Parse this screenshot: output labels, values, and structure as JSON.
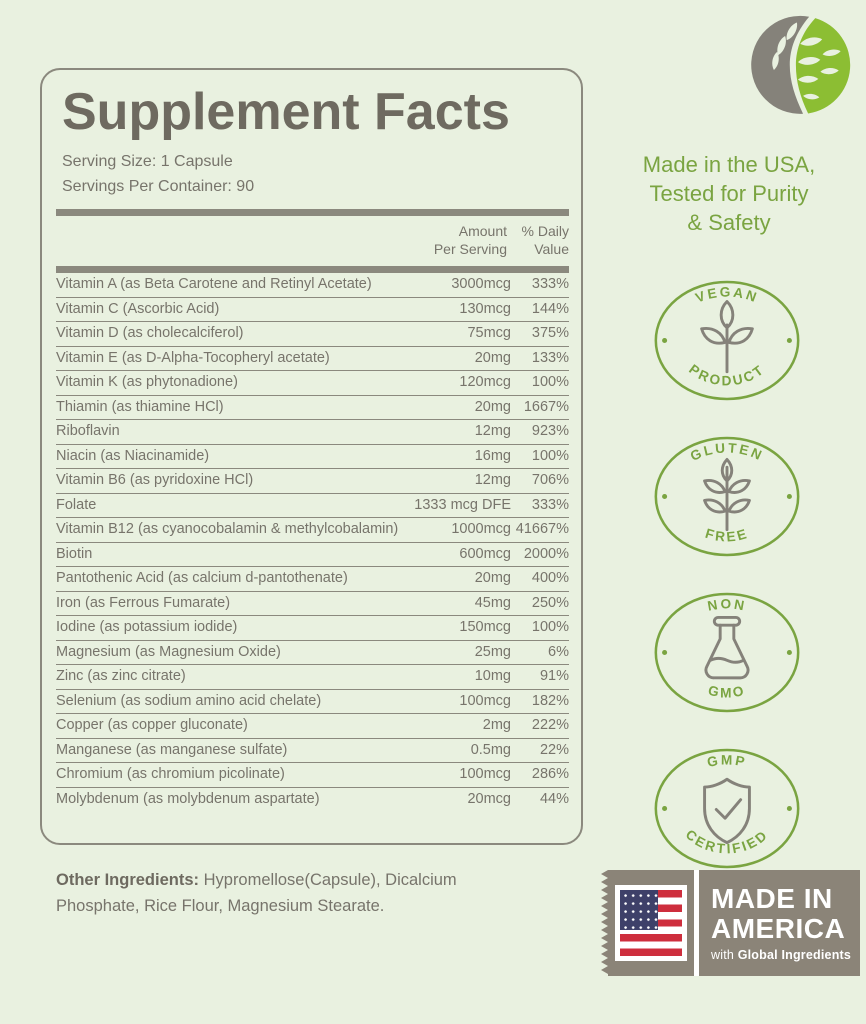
{
  "colors": {
    "bg": "#e9f1e0",
    "line": "#8b897e",
    "ink": "#6e6a60",
    "ink2": "#77746b",
    "green": "#7aa441",
    "icon": "#85827a",
    "stamp": "#8b8478",
    "flag_red": "#ce2e3d",
    "flag_navy": "#3e4069",
    "logo_green": "#8cbe33",
    "white": "#ffffff"
  },
  "panel": {
    "title": "Supplement Facts",
    "serving_size": "Serving Size: 1 Capsule",
    "servings_per_container": "Servings Per Container: 90",
    "columns": {
      "amount": "Amount\nPer Serving",
      "daily_value": "% Daily\nValue"
    },
    "rows": [
      {
        "name": "Vitamin A (as Beta Carotene and Retinyl Acetate)",
        "amount": "3000mcg",
        "dv": "333%"
      },
      {
        "name": "Vitamin C (Ascorbic Acid)",
        "amount": "130mcg",
        "dv": "144%"
      },
      {
        "name": "Vitamin D (as cholecalciferol)",
        "amount": "75mcg",
        "dv": "375%"
      },
      {
        "name": "Vitamin E (as D-Alpha-Tocopheryl acetate)",
        "amount": "20mg",
        "dv": "133%"
      },
      {
        "name": "Vitamin K (as phytonadione)",
        "amount": "120mcg",
        "dv": "100%"
      },
      {
        "name": "Thiamin (as thiamine HCl)",
        "amount": "20mg",
        "dv": "1667%"
      },
      {
        "name": "Riboflavin",
        "amount": "12mg",
        "dv": "923%"
      },
      {
        "name": "Niacin (as Niacinamide)",
        "amount": "16mg",
        "dv": "100%"
      },
      {
        "name": "Vitamin B6 (as pyridoxine HCl)",
        "amount": "12mg",
        "dv": "706%"
      },
      {
        "name": "Folate",
        "amount": "1333 mcg DFE",
        "dv": "333%"
      },
      {
        "name": "Vitamin B12 (as cyanocobalamin & methylcobalamin)",
        "amount": "1000mcg",
        "dv": "41667%"
      },
      {
        "name": "Biotin",
        "amount": "600mcg",
        "dv": "2000%"
      },
      {
        "name": "Pantothenic Acid (as calcium d-pantothenate)",
        "amount": "20mg",
        "dv": "400%"
      },
      {
        "name": "Iron (as Ferrous Fumarate)",
        "amount": "45mg",
        "dv": "250%"
      },
      {
        "name": "Iodine (as potassium iodide)",
        "amount": "150mcg",
        "dv": "100%"
      },
      {
        "name": "Magnesium (as Magnesium Oxide)",
        "amount": "25mg",
        "dv": "6%"
      },
      {
        "name": "Zinc (as zinc citrate)",
        "amount": "10mg",
        "dv": "91%"
      },
      {
        "name": "Selenium (as sodium amino acid chelate)",
        "amount": "100mcg",
        "dv": "182%"
      },
      {
        "name": "Copper (as copper gluconate)",
        "amount": "2mg",
        "dv": "222%"
      },
      {
        "name": "Manganese (as manganese sulfate)",
        "amount": "0.5mg",
        "dv": "22%"
      },
      {
        "name": "Chromium (as chromium picolinate)",
        "amount": "100mcg",
        "dv": "286%"
      },
      {
        "name": "Molybdenum (as molybdenum aspartate)",
        "amount": "20mcg",
        "dv": "44%"
      }
    ]
  },
  "other_ingredients": {
    "label": "Other Ingredients:",
    "text": " Hypromellose(Capsule), Dicalcium Phosphate, Rice Flour, Magnesium Stearate."
  },
  "right": {
    "logo_icon": "leaf-logo-icon",
    "made_in_usa": "Made in the USA,\nTested for Purity\n& Safety",
    "badges": [
      {
        "top": "VEGAN",
        "bottom": "PRODUCT",
        "icon": "plant-icon"
      },
      {
        "top": "GLUTEN",
        "bottom": "FREE",
        "icon": "wheat-icon"
      },
      {
        "top": "NON",
        "bottom": "GMO",
        "icon": "flask-icon"
      },
      {
        "top": "GMP",
        "bottom": "CERTIFIED",
        "icon": "shield-check-icon"
      }
    ],
    "stamp": {
      "line1": "MADE IN",
      "line2": "AMERICA",
      "tagline_prefix": "with ",
      "tagline_bold": "Global Ingredients"
    }
  }
}
